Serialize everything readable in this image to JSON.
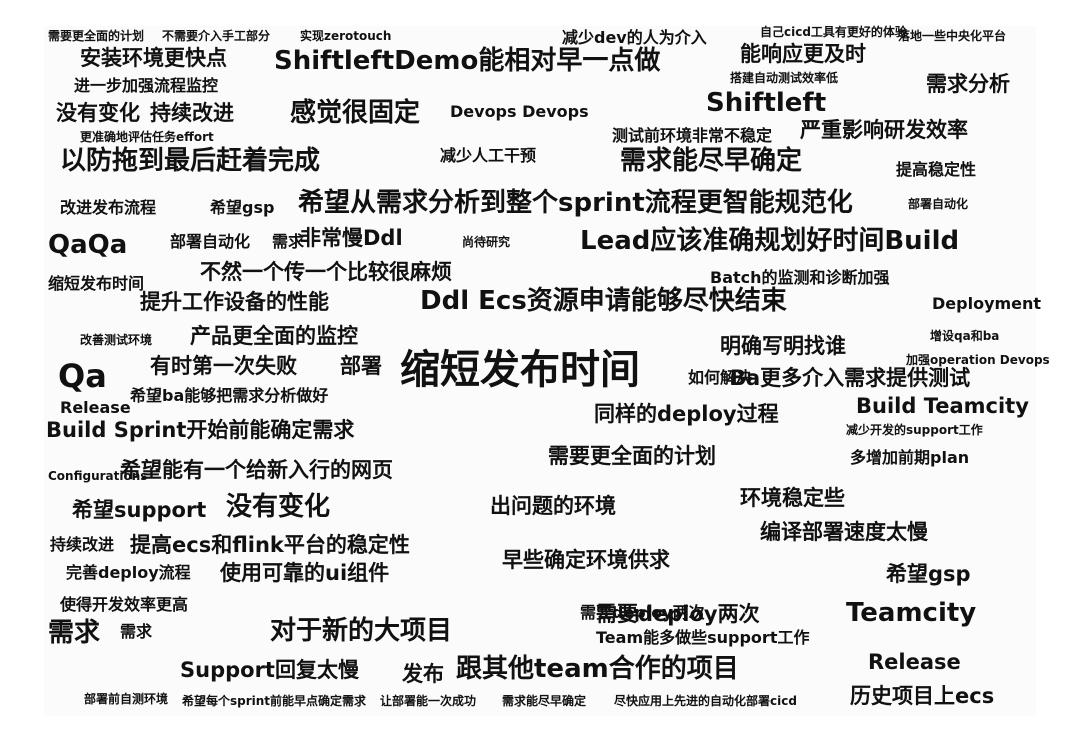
{
  "words": [
    {
      "t": "需要更全面的计划",
      "s": "sm"
    },
    {
      "t": "不需要介入手工部分",
      "s": "sm"
    },
    {
      "t": "实现zerotouch",
      "s": "sm"
    },
    {
      "t": "减少dev的人为介入",
      "s": "md"
    },
    {
      "t": "自己cicd工具有更好的体验",
      "s": "sm"
    },
    {
      "t": "落地一些中央化平台",
      "s": "sm"
    },
    {
      "t": "安装环境更快点",
      "s": "lg"
    },
    {
      "t": "ShiftleftDemo能相对早一点做",
      "s": "xl"
    },
    {
      "t": "能响应更及时",
      "s": "lg"
    },
    {
      "t": "进一步加强流程监控",
      "s": "md"
    },
    {
      "t": "搭建自动测试效率低",
      "s": "sm"
    },
    {
      "t": "需求分析",
      "s": "lg"
    },
    {
      "t": "没有变化",
      "s": "lg"
    },
    {
      "t": "持续改进",
      "s": "lg"
    },
    {
      "t": "感觉很固定",
      "s": "xl"
    },
    {
      "t": "Devops Devops",
      "s": "md"
    },
    {
      "t": "Shiftleft",
      "s": "xl"
    },
    {
      "t": "严重影响研发效率",
      "s": "lg"
    },
    {
      "t": "更准确地评估任务effort",
      "s": "sm"
    },
    {
      "t": "测试前环境非常不稳定",
      "s": "md"
    },
    {
      "t": "以防拖到最后赶着完成",
      "s": "xl"
    },
    {
      "t": "减少人工干预",
      "s": "md"
    },
    {
      "t": "需求能尽早确定",
      "s": "xl"
    },
    {
      "t": "提高稳定性",
      "s": "md"
    },
    {
      "t": "改进发布流程",
      "s": "md"
    },
    {
      "t": "希望gsp",
      "s": "md"
    },
    {
      "t": "希望从需求分析到整个sprint流程更智能规范化",
      "s": "xl"
    },
    {
      "t": "部署自动化",
      "s": "sm"
    },
    {
      "t": "QaQa",
      "s": "xl"
    },
    {
      "t": "部署自动化",
      "s": "md"
    },
    {
      "t": "需求",
      "s": "md"
    },
    {
      "t": "非常慢Ddl",
      "s": "lg"
    },
    {
      "t": "尚待研究",
      "s": "sm"
    },
    {
      "t": "Lead应该准确规划好时间Build",
      "s": "xl"
    },
    {
      "t": "缩短发布时间",
      "s": "md"
    },
    {
      "t": "不然一个传一个比较很麻烦",
      "s": "lg"
    },
    {
      "t": "Batch的监测和诊断加强",
      "s": "md"
    },
    {
      "t": "提升工作设备的性能",
      "s": "lg"
    },
    {
      "t": "Ddl Ecs资源申请能够尽快结束",
      "s": "xl"
    },
    {
      "t": "Deployment",
      "s": "md"
    },
    {
      "t": "产品更全面的监控",
      "s": "lg"
    },
    {
      "t": "改善测试环境",
      "s": "sm"
    },
    {
      "t": "明确写明找谁",
      "s": "lg"
    },
    {
      "t": "Qa",
      "s": "xxl"
    },
    {
      "t": "有时第一次失败",
      "s": "lg"
    },
    {
      "t": "部署",
      "s": "lg"
    },
    {
      "t": "缩短发布时间",
      "s": "hero"
    },
    {
      "t": "增设qa和ba",
      "s": "sm"
    },
    {
      "t": "加强operation Devops",
      "s": "sm"
    },
    {
      "t": "希望ba能够把需求分析做好",
      "s": "md"
    },
    {
      "t": "如何解决",
      "s": "md"
    },
    {
      "t": "Ba更多介入需求提供测试",
      "s": "lg"
    },
    {
      "t": "Release",
      "s": "md"
    },
    {
      "t": "同样的deploy过程",
      "s": "lg"
    },
    {
      "t": "Build Teamcity",
      "s": "lg"
    },
    {
      "t": "Build Sprint开始前能确定需求",
      "s": "lg"
    },
    {
      "t": "需要更全面的计划",
      "s": "lg"
    },
    {
      "t": "多增加前期plan",
      "s": "md"
    },
    {
      "t": "希望能有一个给新入行的网页",
      "s": "lg"
    },
    {
      "t": "减少开发的support工作",
      "s": "sm"
    },
    {
      "t": "希望support",
      "s": "lg"
    },
    {
      "t": "没有变化",
      "s": "xl"
    },
    {
      "t": "出问题的环境",
      "s": "lg"
    },
    {
      "t": "环境稳定些",
      "s": "lg"
    },
    {
      "t": "编译部署速度太慢",
      "s": "lg"
    },
    {
      "t": "持续改进",
      "s": "md"
    },
    {
      "t": "提高ecs和flink平台的稳定性",
      "s": "lg"
    },
    {
      "t": "完善deploy流程",
      "s": "md"
    },
    {
      "t": "使用可靠的ui组件",
      "s": "lg"
    },
    {
      "t": "早些确定环境供求",
      "s": "lg"
    },
    {
      "t": "希望gsp",
      "s": "lg"
    },
    {
      "t": "使得开发效率更高",
      "s": "md"
    },
    {
      "t": "需要deploy两次",
      "s": "lg"
    },
    {
      "t": "Teamcity",
      "s": "xl"
    },
    {
      "t": "需求",
      "s": "xl"
    },
    {
      "t": "需求",
      "s": "md"
    },
    {
      "t": "对于新的大项目",
      "s": "xl"
    },
    {
      "t": "Team能多做些support工作",
      "s": "md"
    },
    {
      "t": "Support回复太慢",
      "s": "lg"
    },
    {
      "t": "发布",
      "s": "lg"
    },
    {
      "t": "跟其他team合作的项目",
      "s": "xl"
    },
    {
      "t": "Release",
      "s": "lg"
    },
    {
      "t": "历史项目上ecs",
      "s": "lg"
    },
    {
      "t": "部署前自测环境",
      "s": "sm"
    },
    {
      "t": "希望每个sprint前能早点确定需求",
      "s": "sm"
    },
    {
      "t": "让部署能一次成功",
      "s": "sm"
    },
    {
      "t": "需求能尽早确定",
      "s": "sm"
    },
    {
      "t": "尽快应用上先进的自动化部署cicd",
      "s": "sm"
    },
    {
      "t": "Configurations",
      "s": "sm"
    },
    {
      "t": "需要deploy两次",
      "s": "md"
    }
  ]
}
